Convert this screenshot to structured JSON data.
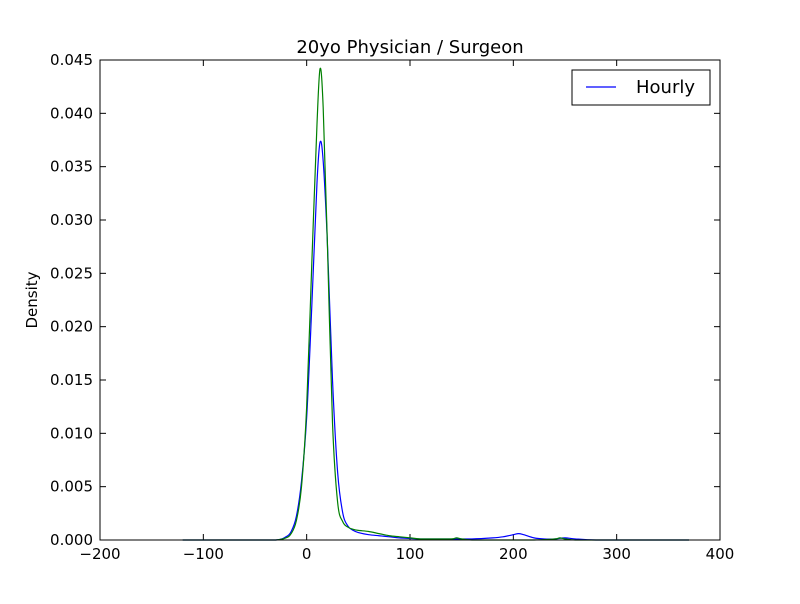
{
  "chart_data": {
    "type": "line",
    "title": "20yo Physician / Surgeon",
    "xlabel": "",
    "ylabel": "Density",
    "xlim": [
      -200,
      400
    ],
    "ylim": [
      0,
      0.045
    ],
    "x_ticks": [
      -200,
      -100,
      0,
      100,
      200,
      300,
      400
    ],
    "x_tick_labels": [
      "−200",
      "−100",
      "0",
      "100",
      "200",
      "300",
      "400"
    ],
    "y_ticks": [
      0,
      0.005,
      0.01,
      0.015,
      0.02,
      0.025,
      0.03,
      0.035,
      0.04,
      0.045
    ],
    "y_tick_labels": [
      "0.000",
      "0.005",
      "0.010",
      "0.015",
      "0.020",
      "0.025",
      "0.030",
      "0.035",
      "0.040",
      "0.045"
    ],
    "grid": false,
    "legend_position": "top-right",
    "legend_entries": [
      "Hourly"
    ],
    "series": [
      {
        "name": "Hourly",
        "color": "#0000ff",
        "x": [
          -120,
          -60,
          -30,
          -20,
          -15,
          -10,
          -5,
          0,
          5,
          10,
          13,
          16,
          20,
          25,
          30,
          35,
          40,
          45,
          50,
          60,
          70,
          80,
          90,
          100,
          110,
          120,
          140,
          160,
          180,
          190,
          200,
          205,
          210,
          220,
          230,
          240,
          250,
          260,
          280,
          320,
          370
        ],
        "y": [
          0,
          0,
          0,
          0.0003,
          0.0008,
          0.0022,
          0.0055,
          0.0115,
          0.022,
          0.0335,
          0.0373,
          0.0355,
          0.028,
          0.015,
          0.0063,
          0.0025,
          0.0013,
          0.0009,
          0.0007,
          0.0005,
          0.0004,
          0.0003,
          0.0002,
          0.00015,
          0.0001,
          0.0001,
          0.0001,
          0.0001,
          0.0002,
          0.0003,
          0.0005,
          0.0006,
          0.0005,
          0.0002,
          0.0001,
          0.0001,
          0.0002,
          0.0001,
          0,
          0,
          0
        ]
      },
      {
        "color": "#008000",
        "x": [
          -120,
          -60,
          -30,
          -20,
          -15,
          -10,
          -5,
          0,
          5,
          10,
          13,
          16,
          20,
          25,
          30,
          35,
          40,
          45,
          50,
          60,
          70,
          80,
          90,
          100,
          110,
          120,
          140,
          145,
          150,
          160,
          180,
          200,
          220,
          240,
          245,
          250,
          260,
          280,
          320,
          370
        ],
        "y": [
          0,
          0,
          0,
          0.0002,
          0.0006,
          0.0018,
          0.005,
          0.0125,
          0.026,
          0.039,
          0.0442,
          0.0405,
          0.028,
          0.011,
          0.0035,
          0.0017,
          0.0012,
          0.001,
          0.0009,
          0.0008,
          0.0006,
          0.0004,
          0.0003,
          0.0002,
          0.0001,
          0.0001,
          0.0001,
          0.0002,
          0.0001,
          0,
          0,
          0,
          0,
          0.0001,
          0.0002,
          0.0001,
          0,
          0,
          0,
          0
        ]
      }
    ]
  }
}
